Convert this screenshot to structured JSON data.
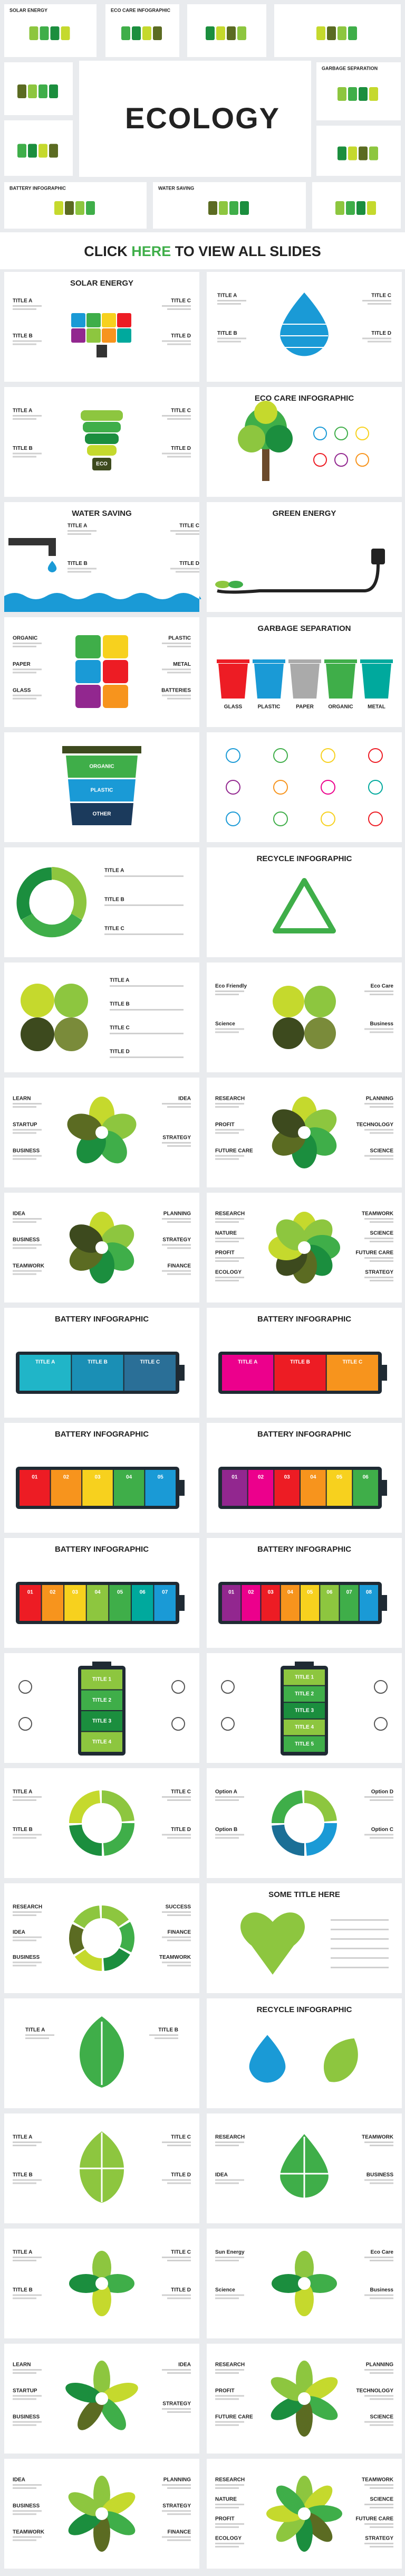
{
  "header": {
    "title": "ECOLOGY",
    "thumbnails": [
      {
        "title": "SOLAR ENERGY"
      },
      {
        "title": "ECO CARE INFOGRAPHIC"
      },
      {
        "title": "GARBAGE SEPARATION"
      },
      {
        "title": "BATTERY INFOGRAPHIC"
      },
      {
        "title": "WATER SAVING"
      }
    ]
  },
  "cta": {
    "before": "CLICK",
    "link": "HERE",
    "after": "TO VIEW ALL SLIDES"
  },
  "slides": [
    {
      "title": "SOLAR ENERGY",
      "labels": [
        "TITLE A",
        "TITLE B",
        "TITLE C",
        "TITLE D"
      ]
    },
    {
      "labels": [
        "TITLE A",
        "TITLE B",
        "TITLE C",
        "TITLE D"
      ]
    },
    {
      "center": "ECO",
      "labels": [
        "TITLE A",
        "TITLE B",
        "TITLE C",
        "TITLE D"
      ]
    },
    {
      "title": "ECO CARE INFOGRAPHIC"
    },
    {
      "title": "WATER SAVING",
      "labels": [
        "TITLE A",
        "TITLE B",
        "TITLE C",
        "TITLE D"
      ]
    },
    {
      "title": "GREEN ENERGY"
    },
    {
      "labels": [
        "ORGANIC",
        "PAPER",
        "GLASS",
        "PLASTIC",
        "METAL",
        "BATTERIES"
      ]
    },
    {
      "title": "GARBAGE SEPARATION",
      "labels": [
        "GLASS",
        "PLASTIC",
        "PAPER",
        "ORGANIC",
        "METAL"
      ]
    },
    {
      "labels": [
        "ORGANIC",
        "PLASTIC",
        "OTHER"
      ]
    },
    {},
    {
      "labels": [
        "TITLE A",
        "TITLE B",
        "TITLE C"
      ]
    },
    {
      "title": "RECYCLE INFOGRAPHIC"
    },
    {
      "labels": [
        "TITLE A",
        "TITLE B",
        "TITLE C",
        "TITLE D"
      ]
    },
    {
      "labels": [
        "Eco Friendly",
        "Science",
        "Eco Care",
        "Business"
      ]
    },
    {
      "labels": [
        "LEARN",
        "STARTUP",
        "BUSINESS",
        "IDEA",
        "STRATEGY"
      ]
    },
    {
      "labels": [
        "RESEARCH",
        "PROFIT",
        "FUTURE CARE",
        "PLANNING",
        "TECHNOLOGY",
        "SCIENCE"
      ]
    },
    {
      "labels": [
        "IDEA",
        "BUSINESS",
        "TEAMWORK",
        "PLANNING",
        "STRATEGY",
        "FINANCE"
      ]
    },
    {
      "labels": [
        "RESEARCH",
        "NATURE",
        "PROFIT",
        "ECOLOGY",
        "TEAMWORK",
        "SCIENCE",
        "FUTURE CARE",
        "STRATEGY"
      ]
    },
    {
      "title": "BATTERY INFOGRAPHIC",
      "labels": [
        "TITLE A",
        "TITLE B",
        "TITLE C"
      ]
    },
    {
      "title": "BATTERY INFOGRAPHIC",
      "labels": [
        "TITLE A",
        "TITLE B",
        "TITLE C"
      ]
    },
    {
      "title": "BATTERY INFOGRAPHIC",
      "labels": [
        "01",
        "02",
        "03",
        "04",
        "05"
      ]
    },
    {
      "title": "BATTERY INFOGRAPHIC",
      "labels": [
        "01",
        "02",
        "03",
        "04",
        "05",
        "06"
      ]
    },
    {
      "title": "BATTERY INFOGRAPHIC",
      "labels": [
        "01",
        "02",
        "03",
        "04",
        "05",
        "06",
        "07"
      ]
    },
    {
      "title": "BATTERY INFOGRAPHIC",
      "labels": [
        "01",
        "02",
        "03",
        "04",
        "05",
        "06",
        "07",
        "08"
      ]
    },
    {
      "labels": [
        "TITLE 1",
        "TITLE 2",
        "TITLE 3",
        "TITLE 4"
      ]
    },
    {
      "labels": [
        "TITLE 1",
        "TITLE 2",
        "TITLE 3",
        "TITLE 4",
        "TITLE 5"
      ]
    },
    {
      "labels": [
        "TITLE A",
        "TITLE B",
        "TITLE C",
        "TITLE D"
      ]
    },
    {
      "labels": [
        "Option A",
        "Option B",
        "Option D",
        "Option C"
      ]
    },
    {
      "labels": [
        "RESEARCH",
        "IDEA",
        "BUSINESS",
        "SUCCESS",
        "FINANCE",
        "TEAMWORK"
      ]
    },
    {
      "title": "SOME TITLE HERE"
    },
    {
      "labels": [
        "TITLE A",
        "TITLE B"
      ]
    },
    {
      "title": "RECYCLE INFOGRAPHIC"
    },
    {
      "labels": [
        "TITLE A",
        "TITLE B",
        "TITLE C",
        "TITLE D"
      ]
    },
    {
      "labels": [
        "RESEARCH",
        "IDEA",
        "TEAMWORK",
        "BUSINESS"
      ]
    },
    {
      "labels": [
        "TITLE A",
        "TITLE B",
        "TITLE C",
        "TITLE D"
      ]
    },
    {
      "labels": [
        "Sun Energy",
        "Science",
        "Eco Care",
        "Business"
      ]
    },
    {
      "labels": [
        "LEARN",
        "STARTUP",
        "BUSINESS",
        "IDEA",
        "STRATEGY"
      ]
    },
    {
      "labels": [
        "RESEARCH",
        "PROFIT",
        "FUTURE CARE",
        "PLANNING",
        "TECHNOLOGY",
        "SCIENCE"
      ]
    },
    {
      "labels": [
        "IDEA",
        "BUSINESS",
        "TEAMWORK",
        "PLANNING",
        "STRATEGY",
        "FINANCE"
      ]
    },
    {
      "labels": [
        "RESEARCH",
        "NATURE",
        "PROFIT",
        "ECOLOGY",
        "TEAMWORK",
        "SCIENCE",
        "FUTURE CARE",
        "STRATEGY"
      ]
    }
  ]
}
